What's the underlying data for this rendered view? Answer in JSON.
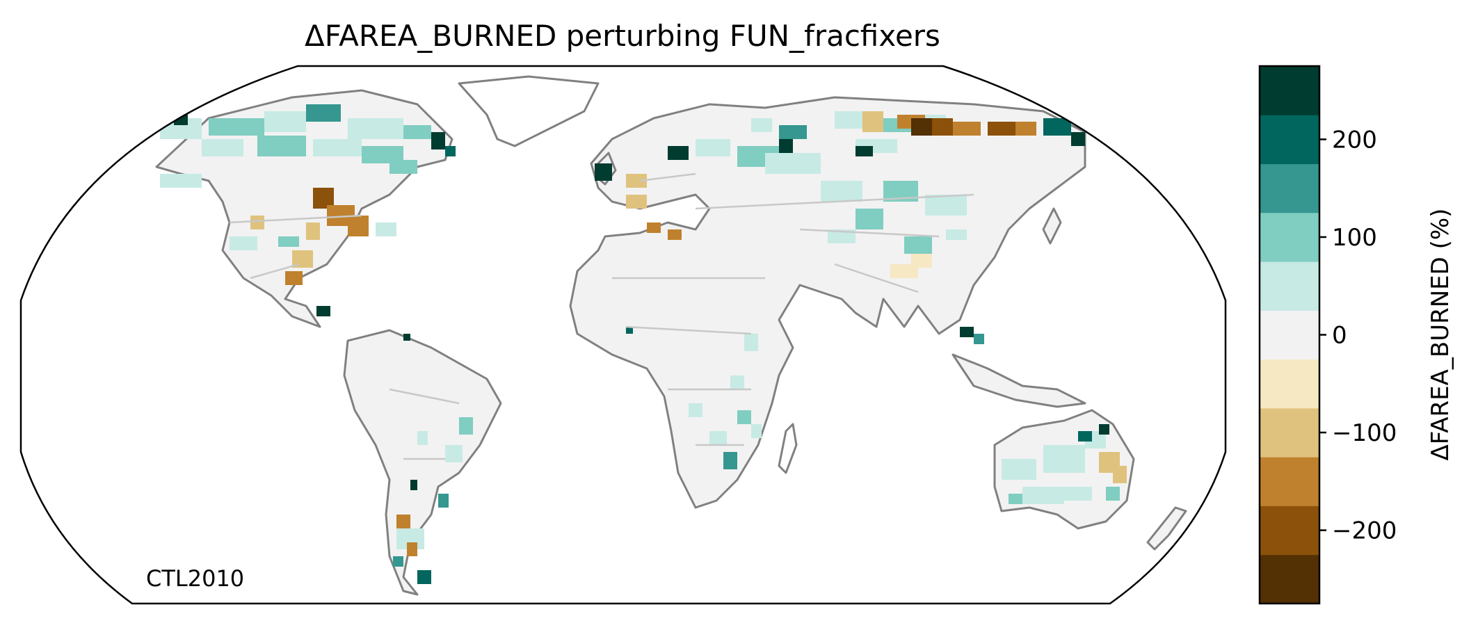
{
  "map": {
    "title": "ΔFAREA_BURNED perturbing FUN_fracfixers",
    "panel_label": "CTL2010",
    "projection": "robinson",
    "coastline_color": "#808080",
    "border_color": "#c8c8c8",
    "background_land_color": "#f2f2f2"
  },
  "colorbar": {
    "label": "ΔFAREA_BURNED (%)",
    "vmin": -275,
    "vmax": 275,
    "ticks": [
      -200,
      -100,
      0,
      100,
      200
    ],
    "tick_labels": [
      "−200",
      "−100",
      "0",
      "100",
      "200"
    ],
    "bins": [
      {
        "from": -275,
        "to": -225,
        "color": "#543005"
      },
      {
        "from": -225,
        "to": -175,
        "color": "#8c510a"
      },
      {
        "from": -175,
        "to": -125,
        "color": "#bf812d"
      },
      {
        "from": -125,
        "to": -75,
        "color": "#dfc27d"
      },
      {
        "from": -75,
        "to": -25,
        "color": "#f6e8c3"
      },
      {
        "from": -25,
        "to": 25,
        "color": "#f2f2f2"
      },
      {
        "from": 25,
        "to": 75,
        "color": "#c7eae5"
      },
      {
        "from": 75,
        "to": 125,
        "color": "#80cdc1"
      },
      {
        "from": 125,
        "to": 175,
        "color": "#35978f"
      },
      {
        "from": 175,
        "to": 225,
        "color": "#01665e"
      },
      {
        "from": 225,
        "to": 275,
        "color": "#003c30"
      }
    ]
  }
}
